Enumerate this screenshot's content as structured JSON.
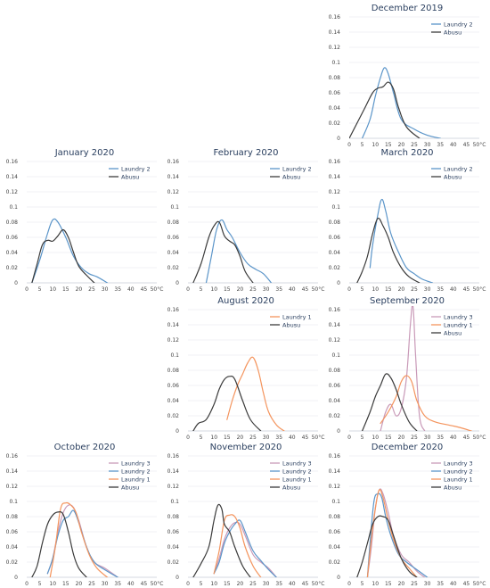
{
  "colors": {
    "Laundry 1": "#f4945d",
    "Laundry 2": "#5b95c9",
    "Laundry 3": "#c99ab8",
    "Abusu": "#3b3b3b"
  },
  "chart_data": [
    {
      "type": "line",
      "title": "December 2019",
      "xlim": [
        0,
        50
      ],
      "ylim": [
        0,
        0.16
      ],
      "legend": "top-right",
      "series": [
        {
          "name": "Laundry 2",
          "x": [
            5,
            8,
            10,
            12,
            13.5,
            15,
            17,
            20,
            25,
            30,
            35
          ],
          "y": [
            0.0,
            0.025,
            0.055,
            0.08,
            0.093,
            0.085,
            0.06,
            0.025,
            0.012,
            0.004,
            0.0
          ]
        },
        {
          "name": "Abusu",
          "x": [
            0,
            3,
            6,
            9,
            11,
            13,
            15,
            17,
            19,
            22,
            27
          ],
          "y": [
            0.0,
            0.02,
            0.04,
            0.06,
            0.066,
            0.068,
            0.074,
            0.065,
            0.04,
            0.015,
            0.0
          ]
        }
      ]
    },
    {
      "type": "line",
      "title": "January 2020",
      "xlim": [
        0,
        50
      ],
      "ylim": [
        0,
        0.16
      ],
      "legend": "top-right",
      "series": [
        {
          "name": "Laundry 2",
          "x": [
            2,
            5,
            8,
            10,
            12,
            15,
            18,
            21,
            24,
            27,
            31
          ],
          "y": [
            0.0,
            0.03,
            0.065,
            0.083,
            0.08,
            0.06,
            0.035,
            0.02,
            0.012,
            0.008,
            0.0
          ]
        },
        {
          "name": "Abusu",
          "x": [
            2,
            4,
            6,
            8,
            10,
            12,
            14,
            16,
            18,
            20,
            23,
            26
          ],
          "y": [
            0.0,
            0.025,
            0.05,
            0.056,
            0.055,
            0.062,
            0.07,
            0.06,
            0.04,
            0.022,
            0.01,
            0.0
          ]
        }
      ]
    },
    {
      "type": "line",
      "title": "February 2020",
      "xlim": [
        0,
        50
      ],
      "ylim": [
        0,
        0.16
      ],
      "legend": "top-right",
      "series": [
        {
          "name": "Laundry 2",
          "x": [
            7,
            9,
            11,
            13,
            15,
            17,
            20,
            23,
            26,
            29,
            32
          ],
          "y": [
            0.0,
            0.035,
            0.07,
            0.083,
            0.07,
            0.06,
            0.04,
            0.025,
            0.018,
            0.012,
            0.0
          ]
        },
        {
          "name": "Abusu",
          "x": [
            2,
            5,
            8,
            10,
            12,
            14,
            16,
            18,
            20,
            22,
            25
          ],
          "y": [
            0.0,
            0.025,
            0.06,
            0.075,
            0.08,
            0.062,
            0.055,
            0.05,
            0.035,
            0.015,
            0.0
          ]
        }
      ]
    },
    {
      "type": "line",
      "title": "March 2020",
      "xlim": [
        0,
        50
      ],
      "ylim": [
        0,
        0.16
      ],
      "legend": "top-right",
      "series": [
        {
          "name": "Laundry 2",
          "x": [
            8,
            9,
            11,
            12.5,
            14,
            16,
            19,
            22,
            25,
            28,
            32
          ],
          "y": [
            0.02,
            0.05,
            0.09,
            0.11,
            0.095,
            0.065,
            0.04,
            0.02,
            0.012,
            0.005,
            0.0
          ]
        },
        {
          "name": "Abusu",
          "x": [
            3,
            5,
            7,
            9,
            11,
            13,
            15,
            17,
            20,
            23,
            27
          ],
          "y": [
            0.0,
            0.015,
            0.035,
            0.065,
            0.085,
            0.075,
            0.06,
            0.04,
            0.02,
            0.008,
            0.0
          ]
        }
      ]
    },
    {
      "type": "line",
      "title": "August 2020",
      "xlim": [
        0,
        50
      ],
      "ylim": [
        0,
        0.16
      ],
      "legend": "top-right",
      "series": [
        {
          "name": "Laundry 1",
          "x": [
            15,
            17,
            19,
            21,
            23,
            25,
            27,
            29,
            31,
            34,
            37
          ],
          "y": [
            0.015,
            0.04,
            0.06,
            0.075,
            0.09,
            0.097,
            0.08,
            0.05,
            0.025,
            0.008,
            0.0
          ]
        },
        {
          "name": "Abusu",
          "x": [
            2,
            4,
            7,
            10,
            12,
            14,
            16,
            18,
            21,
            24,
            28
          ],
          "y": [
            0.0,
            0.01,
            0.015,
            0.035,
            0.055,
            0.068,
            0.072,
            0.068,
            0.04,
            0.015,
            0.0
          ]
        }
      ]
    },
    {
      "type": "line",
      "title": "September 2020",
      "xlim": [
        0,
        50
      ],
      "ylim": [
        0,
        0.16
      ],
      "legend": "top-right",
      "series": [
        {
          "name": "Laundry 3",
          "x": [
            12,
            14,
            16,
            18,
            20,
            22,
            23.5,
            24.5,
            25.5,
            27,
            29
          ],
          "y": [
            0.0,
            0.025,
            0.035,
            0.02,
            0.03,
            0.07,
            0.14,
            0.165,
            0.1,
            0.02,
            0.0
          ]
        },
        {
          "name": "Laundry 1",
          "x": [
            12,
            15,
            18,
            20,
            22,
            24,
            26,
            29,
            33,
            38,
            42,
            47
          ],
          "y": [
            0.01,
            0.025,
            0.045,
            0.065,
            0.073,
            0.065,
            0.04,
            0.02,
            0.012,
            0.008,
            0.005,
            0.0
          ]
        },
        {
          "name": "Abusu",
          "x": [
            5,
            8,
            10,
            12,
            14,
            16,
            18,
            20,
            23,
            26
          ],
          "y": [
            0.0,
            0.025,
            0.045,
            0.06,
            0.075,
            0.07,
            0.055,
            0.035,
            0.012,
            0.0
          ]
        }
      ]
    },
    {
      "type": "line",
      "title": "October 2020",
      "xlim": [
        0,
        50
      ],
      "ylim": [
        0,
        0.16
      ],
      "legend": "top-right",
      "series": [
        {
          "name": "Laundry 3",
          "x": [
            8,
            10,
            12,
            14,
            16,
            18,
            20,
            23,
            26,
            30,
            35
          ],
          "y": [
            0.005,
            0.025,
            0.06,
            0.085,
            0.095,
            0.092,
            0.075,
            0.04,
            0.02,
            0.012,
            0.0
          ]
        },
        {
          "name": "Laundry 2",
          "x": [
            8,
            10,
            12,
            14,
            16,
            18,
            20,
            23,
            26,
            30,
            35
          ],
          "y": [
            0.005,
            0.025,
            0.055,
            0.075,
            0.08,
            0.088,
            0.072,
            0.04,
            0.02,
            0.01,
            0.0
          ]
        },
        {
          "name": "Laundry 1",
          "x": [
            9,
            11,
            13,
            15,
            17,
            19,
            21,
            24,
            27,
            31
          ],
          "y": [
            0.0,
            0.04,
            0.09,
            0.098,
            0.095,
            0.085,
            0.06,
            0.03,
            0.012,
            0.0
          ]
        },
        {
          "name": "Abusu",
          "x": [
            2,
            4,
            6,
            8,
            10,
            12,
            14,
            16,
            18,
            20,
            23
          ],
          "y": [
            0.0,
            0.015,
            0.045,
            0.07,
            0.082,
            0.086,
            0.083,
            0.06,
            0.03,
            0.012,
            0.0
          ]
        }
      ]
    },
    {
      "type": "line",
      "title": "November 2020",
      "xlim": [
        0,
        50
      ],
      "ylim": [
        0,
        0.16
      ],
      "legend": "top-right",
      "series": [
        {
          "name": "Laundry 3",
          "x": [
            10,
            12,
            14,
            16,
            18,
            20,
            22,
            25,
            28,
            31,
            34
          ],
          "y": [
            0.005,
            0.025,
            0.05,
            0.065,
            0.072,
            0.07,
            0.055,
            0.03,
            0.02,
            0.012,
            0.0
          ]
        },
        {
          "name": "Laundry 2",
          "x": [
            10,
            12,
            14,
            16,
            18,
            20,
            22,
            25,
            28,
            31,
            34
          ],
          "y": [
            0.005,
            0.02,
            0.045,
            0.06,
            0.07,
            0.075,
            0.06,
            0.035,
            0.022,
            0.01,
            0.0
          ]
        },
        {
          "name": "Laundry 1",
          "x": [
            10,
            12,
            14,
            16,
            18,
            20,
            22,
            25,
            28
          ],
          "y": [
            0.005,
            0.035,
            0.075,
            0.082,
            0.08,
            0.065,
            0.04,
            0.015,
            0.0
          ]
        },
        {
          "name": "Abusu",
          "x": [
            2,
            5,
            8,
            10,
            11.5,
            13,
            14,
            16,
            18,
            21,
            24
          ],
          "y": [
            0.0,
            0.018,
            0.04,
            0.075,
            0.095,
            0.09,
            0.07,
            0.06,
            0.04,
            0.015,
            0.0
          ]
        }
      ]
    },
    {
      "type": "line",
      "title": "December 2020",
      "xlim": [
        0,
        50
      ],
      "ylim": [
        0,
        0.16
      ],
      "legend": "top-right",
      "series": [
        {
          "name": "Laundry 3",
          "x": [
            7,
            8.5,
            10,
            11.5,
            13,
            15,
            17,
            20,
            23,
            26,
            29
          ],
          "y": [
            0.0,
            0.04,
            0.09,
            0.115,
            0.11,
            0.085,
            0.055,
            0.03,
            0.02,
            0.008,
            0.0
          ]
        },
        {
          "name": "Laundry 2",
          "x": [
            7,
            8,
            9.5,
            11,
            12.5,
            14,
            16,
            19,
            22,
            26,
            30
          ],
          "y": [
            0.0,
            0.045,
            0.1,
            0.11,
            0.105,
            0.08,
            0.055,
            0.03,
            0.02,
            0.01,
            0.0
          ]
        },
        {
          "name": "Laundry 1",
          "x": [
            7,
            8.5,
            10,
            11.5,
            13,
            15,
            17,
            20,
            23,
            26
          ],
          "y": [
            0.0,
            0.05,
            0.09,
            0.115,
            0.105,
            0.075,
            0.05,
            0.025,
            0.012,
            0.0
          ]
        },
        {
          "name": "Abusu",
          "x": [
            3,
            5,
            7,
            9,
            11,
            13,
            15,
            17,
            20,
            23,
            26
          ],
          "y": [
            0.0,
            0.02,
            0.045,
            0.07,
            0.08,
            0.08,
            0.075,
            0.055,
            0.025,
            0.008,
            0.0
          ]
        }
      ]
    }
  ],
  "x_tick_labels": [
    "0",
    "5",
    "10",
    "15",
    "20",
    "25",
    "30",
    "35",
    "40",
    "45",
    "50°C"
  ],
  "y_tick_labels": [
    "0",
    "0.02",
    "0.04",
    "0.06",
    "0.08",
    "0.1",
    "0.12",
    "0.14",
    "0.16"
  ]
}
